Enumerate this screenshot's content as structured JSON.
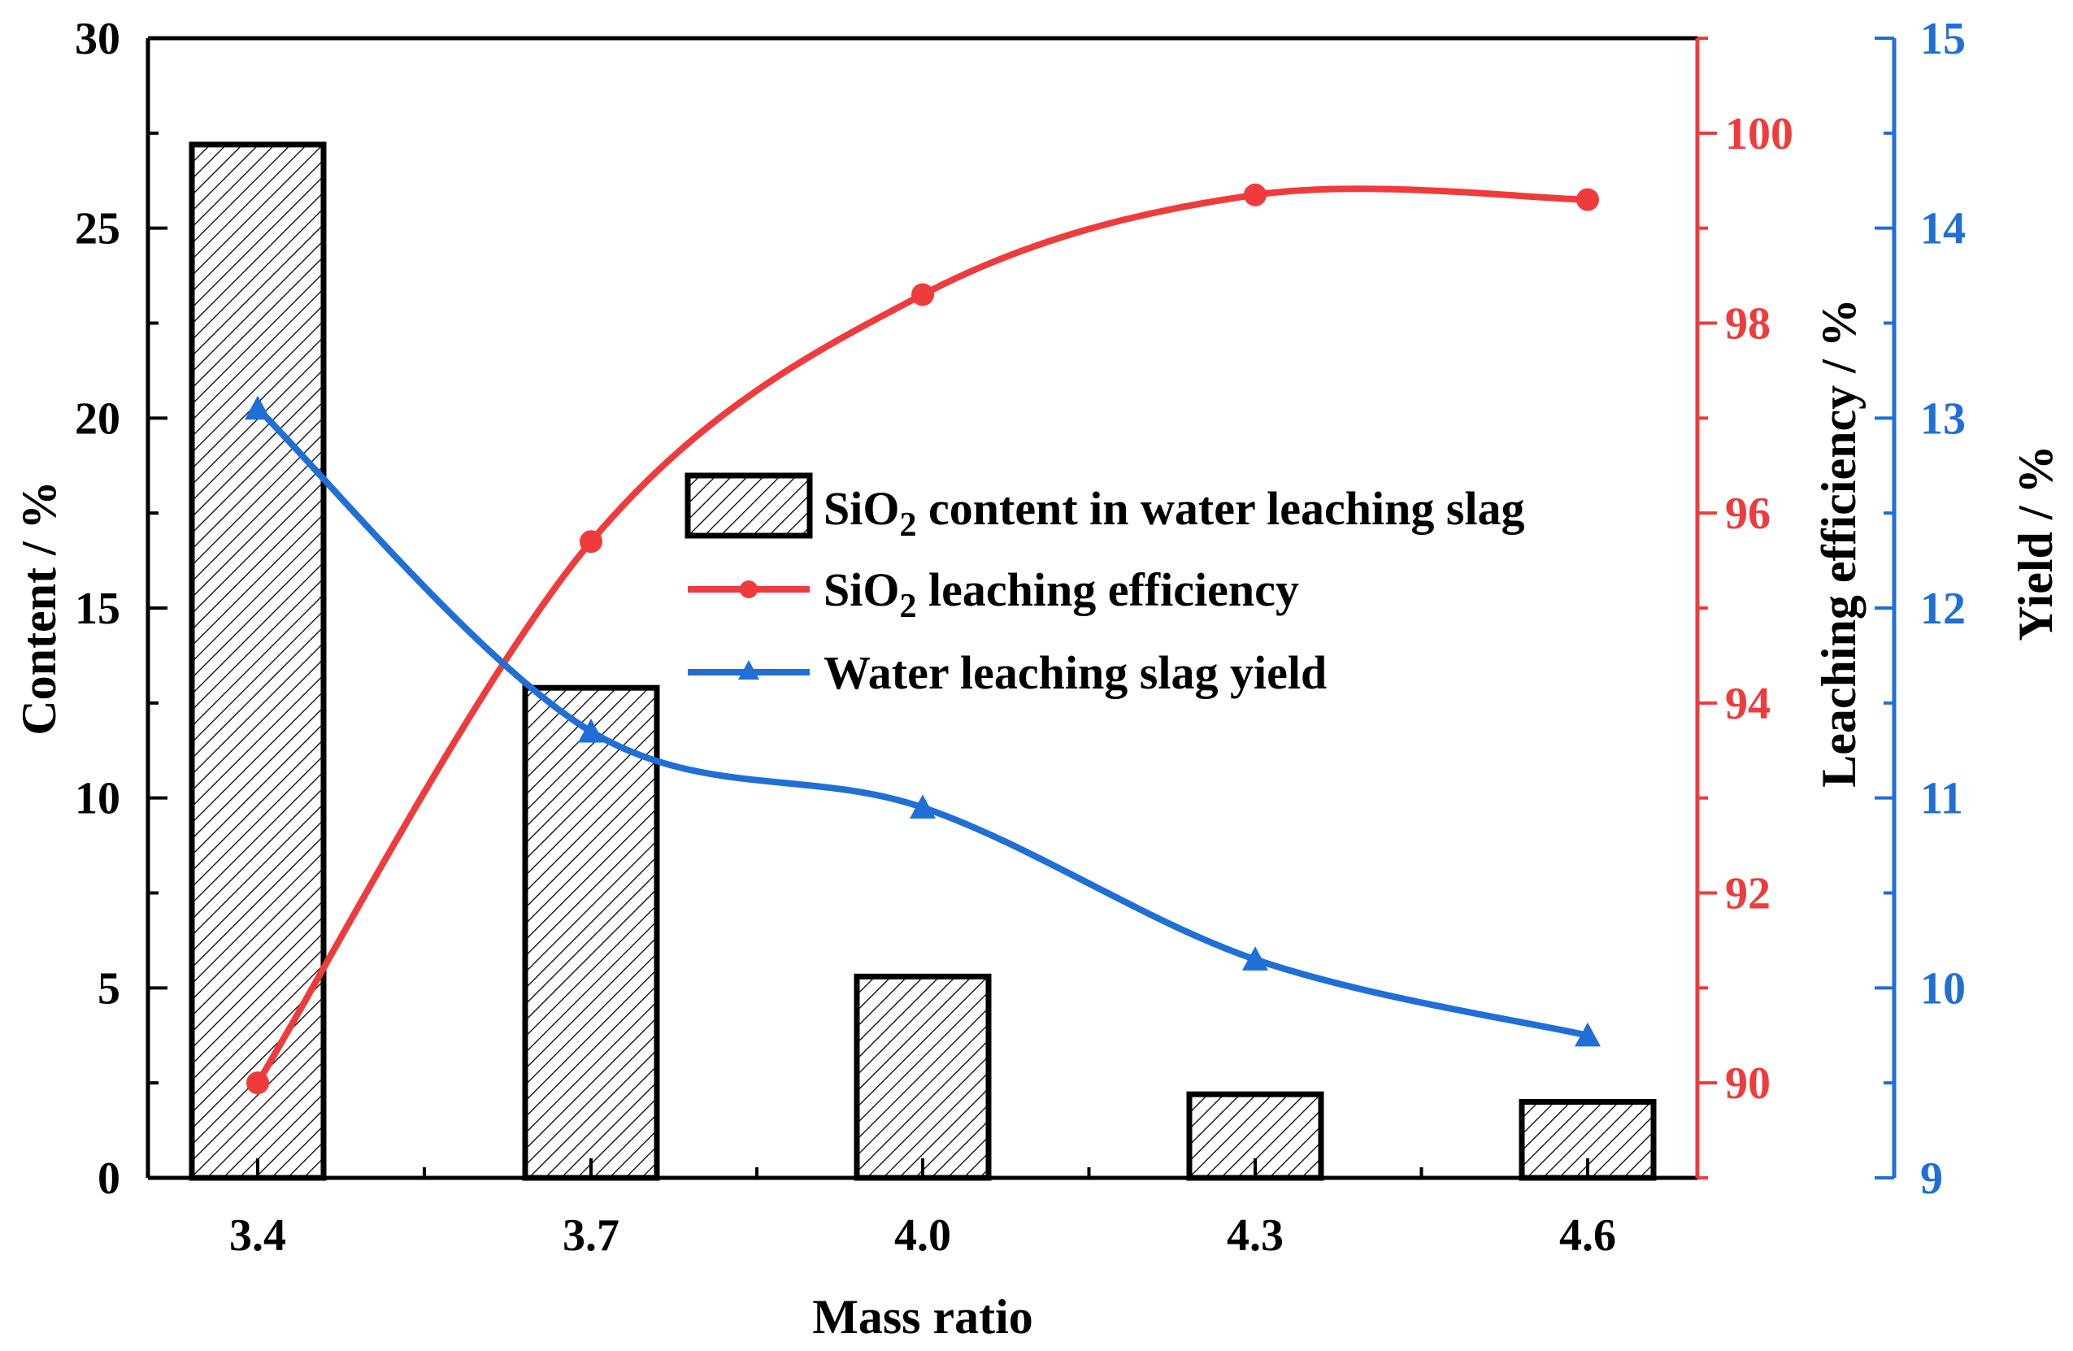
{
  "chart_data": {
    "type": "bar",
    "xlabel": "Mass ratio",
    "categories": [
      "3.4",
      "3.7",
      "4.0",
      "4.3",
      "4.6"
    ],
    "axes": {
      "left": {
        "label": "Content  / %",
        "range": [
          0,
          30
        ],
        "ticks": [
          "0",
          "5",
          "10",
          "15",
          "20",
          "25",
          "30"
        ],
        "color": "#000000"
      },
      "right1": {
        "label": "Leaching efficiency  / %",
        "range": [
          89,
          101
        ],
        "ticks": [
          "90",
          "92",
          "94",
          "96",
          "98",
          "100"
        ],
        "color": "#ef3b3b"
      },
      "right2": {
        "label": "Yield / %",
        "range": [
          9,
          15
        ],
        "ticks": [
          "9",
          "10",
          "11",
          "12",
          "13",
          "14",
          "15"
        ],
        "color": "#1f6fd6"
      }
    },
    "series": [
      {
        "name": "SiO2 content in water leaching slag",
        "legend_main": "SiO",
        "legend_sub": "2",
        "legend_rest": " content in water leaching slag",
        "kind": "bar",
        "axis": "left",
        "color": "#000000",
        "values": [
          27.2,
          12.9,
          5.3,
          2.2,
          2.0
        ]
      },
      {
        "name": "SiO2 leaching efficiency",
        "legend_main": "SiO",
        "legend_sub": "2",
        "legend_rest": " leaching efficiency",
        "kind": "line",
        "marker": "circle",
        "axis": "right1",
        "color": "#ef3b3b",
        "values": [
          90.0,
          95.7,
          98.3,
          99.35,
          99.3
        ]
      },
      {
        "name": "Water leaching slag yield",
        "legend_main": "Water leaching slag yield",
        "legend_sub": "",
        "legend_rest": "",
        "kind": "line",
        "marker": "triangle",
        "axis": "right2",
        "color": "#1f6fd6",
        "values": [
          13.05,
          11.35,
          10.95,
          10.15,
          9.75
        ]
      }
    ]
  }
}
